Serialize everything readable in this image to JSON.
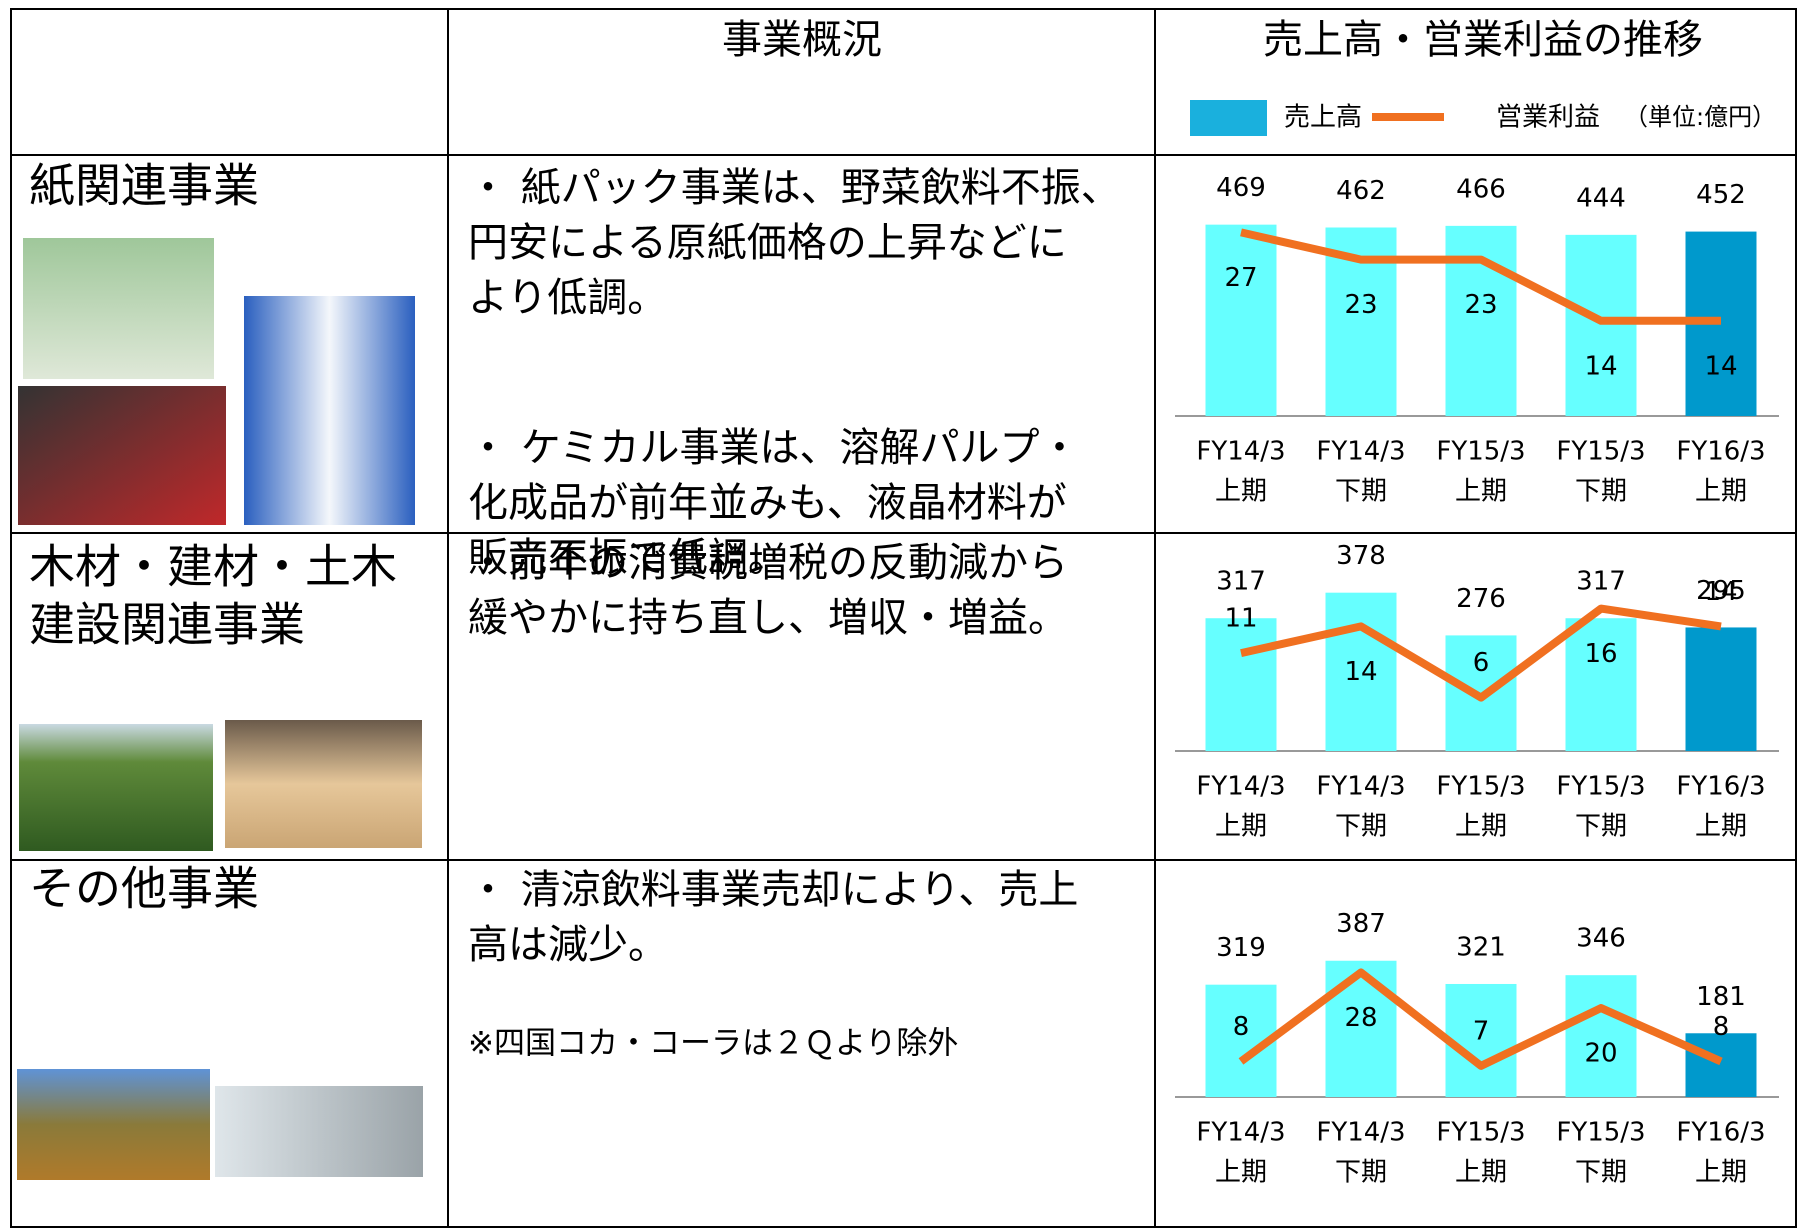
{
  "header": {
    "overview": "事業概況",
    "trend": "売上高・営業利益の推移",
    "legend": {
      "bar": "売上高",
      "line": "営業利益",
      "unit": "（単位:億円）"
    }
  },
  "rows": [
    {
      "name": [
        "紙関連事業"
      ],
      "paragraphs": [
        [
          "・ 紙パック事業は、野菜飲料不振、",
          "円安による原紙価格の上昇などに",
          "より低調。"
        ],
        [
          "・ ケミカル事業は、溶解パルプ・",
          "化成品が前年並みも、液晶材料が",
          "販売不振で低調。"
        ]
      ],
      "chart": {
        "type": "bar_line",
        "categories": [
          [
            "FY14/3",
            "上期"
          ],
          [
            "FY14/3",
            "下期"
          ],
          [
            "FY15/3",
            "上期"
          ],
          [
            "FY15/3",
            "下期"
          ],
          [
            "FY16/3",
            "上期"
          ]
        ],
        "series": [
          {
            "type": "bar",
            "colors": [
              "#66ffff",
              "#66ffff",
              "#66ffff",
              "#66ffff",
              "#0099cc"
            ],
            "values": [
              469,
              462,
              466,
              444,
              452
            ]
          },
          {
            "type": "line",
            "axis": "y2",
            "color": "#f07020",
            "values": [
              27,
              23,
              23,
              14,
              14
            ]
          }
        ],
        "ylim": [
          0,
          500
        ],
        "y2lim": [
          0,
          30
        ]
      }
    },
    {
      "name": [
        "木材・建材・土木",
        "建設関連事業"
      ],
      "paragraphs": [
        [
          "・前年の消費税増税の反動減から",
          "緩やかに持ち直し、増収・増益。"
        ]
      ],
      "chart": {
        "type": "bar_line",
        "categories": [
          [
            "FY14/3",
            "上期"
          ],
          [
            "FY14/3",
            "下期"
          ],
          [
            "FY15/3",
            "上期"
          ],
          [
            "FY15/3",
            "下期"
          ],
          [
            "FY16/3",
            "上期"
          ]
        ],
        "series": [
          {
            "type": "bar",
            "colors": [
              "#66ffff",
              "#66ffff",
              "#66ffff",
              "#66ffff",
              "#0099cc"
            ],
            "values": [
              317,
              378,
              276,
              317,
              295
            ]
          },
          {
            "type": "line",
            "axis": "y2",
            "color": "#f07020",
            "values": [
              11,
              14,
              6,
              16,
              14
            ]
          }
        ],
        "ylim": [
          0,
          425
        ],
        "y2lim": [
          0,
          20
        ]
      }
    },
    {
      "name": [
        "その他事業"
      ],
      "paragraphs": [
        [
          "・ 清涼飲料事業売却により、売上",
          "高は減少。"
        ]
      ],
      "note": "※四国コカ・コーラは２Ｑより除外",
      "chart": {
        "type": "bar_line",
        "categories": [
          [
            "FY14/3",
            "上期"
          ],
          [
            "FY14/3",
            "下期"
          ],
          [
            "FY15/3",
            "上期"
          ],
          [
            "FY15/3",
            "下期"
          ],
          [
            "FY16/3",
            "上期"
          ]
        ],
        "series": [
          {
            "type": "bar",
            "colors": [
              "#66ffff",
              "#66ffff",
              "#66ffff",
              "#66ffff",
              "#0099cc"
            ],
            "values": [
              319,
              387,
              321,
              346,
              181
            ]
          },
          {
            "type": "line",
            "axis": "y2",
            "color": "#f07020",
            "values": [
              8,
              28,
              7,
              20,
              8
            ]
          }
        ],
        "ylim": [
          0,
          480
        ],
        "y2lim": [
          0,
          38
        ]
      }
    }
  ]
}
